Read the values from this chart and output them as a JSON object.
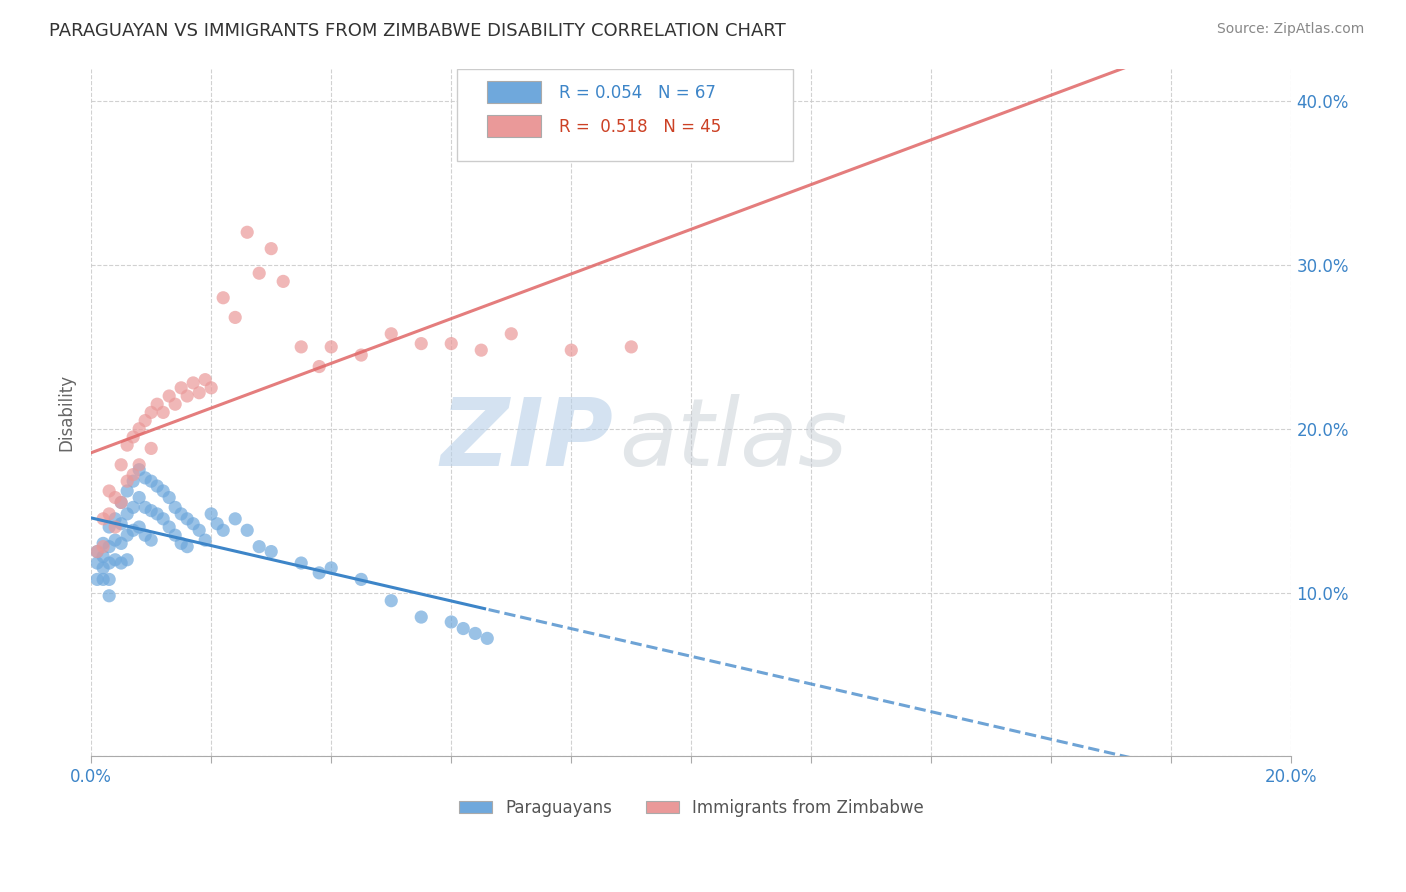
{
  "title": "PARAGUAYAN VS IMMIGRANTS FROM ZIMBABWE DISABILITY CORRELATION CHART",
  "source": "Source: ZipAtlas.com",
  "ylabel": "Disability",
  "xlim": [
    0.0,
    0.2
  ],
  "ylim": [
    0.0,
    0.42
  ],
  "xticks": [
    0.0,
    0.02,
    0.04,
    0.06,
    0.08,
    0.1,
    0.12,
    0.14,
    0.16,
    0.18,
    0.2
  ],
  "yticks": [
    0.0,
    0.1,
    0.2,
    0.3,
    0.4
  ],
  "blue_color": "#6fa8dc",
  "pink_color": "#ea9999",
  "blue_line_color": "#3d85c8",
  "pink_line_color": "#e06666",
  "R_blue": 0.054,
  "N_blue": 67,
  "R_pink": 0.518,
  "N_pink": 45,
  "legend_label_blue": "Paraguayans",
  "legend_label_pink": "Immigrants from Zimbabwe",
  "blue_points_x": [
    0.001,
    0.001,
    0.001,
    0.002,
    0.002,
    0.002,
    0.002,
    0.003,
    0.003,
    0.003,
    0.003,
    0.003,
    0.004,
    0.004,
    0.004,
    0.005,
    0.005,
    0.005,
    0.005,
    0.006,
    0.006,
    0.006,
    0.006,
    0.007,
    0.007,
    0.007,
    0.008,
    0.008,
    0.008,
    0.009,
    0.009,
    0.009,
    0.01,
    0.01,
    0.01,
    0.011,
    0.011,
    0.012,
    0.012,
    0.013,
    0.013,
    0.014,
    0.014,
    0.015,
    0.015,
    0.016,
    0.016,
    0.017,
    0.018,
    0.019,
    0.02,
    0.021,
    0.022,
    0.024,
    0.026,
    0.028,
    0.03,
    0.035,
    0.038,
    0.04,
    0.045,
    0.05,
    0.055,
    0.06,
    0.062,
    0.064,
    0.066
  ],
  "blue_points_y": [
    0.125,
    0.118,
    0.108,
    0.13,
    0.122,
    0.115,
    0.108,
    0.14,
    0.128,
    0.118,
    0.108,
    0.098,
    0.145,
    0.132,
    0.12,
    0.155,
    0.142,
    0.13,
    0.118,
    0.162,
    0.148,
    0.135,
    0.12,
    0.168,
    0.152,
    0.138,
    0.175,
    0.158,
    0.14,
    0.17,
    0.152,
    0.135,
    0.168,
    0.15,
    0.132,
    0.165,
    0.148,
    0.162,
    0.145,
    0.158,
    0.14,
    0.152,
    0.135,
    0.148,
    0.13,
    0.145,
    0.128,
    0.142,
    0.138,
    0.132,
    0.148,
    0.142,
    0.138,
    0.145,
    0.138,
    0.128,
    0.125,
    0.118,
    0.112,
    0.115,
    0.108,
    0.095,
    0.085,
    0.082,
    0.078,
    0.075,
    0.072
  ],
  "pink_points_x": [
    0.001,
    0.002,
    0.002,
    0.003,
    0.003,
    0.004,
    0.004,
    0.005,
    0.005,
    0.006,
    0.006,
    0.007,
    0.007,
    0.008,
    0.008,
    0.009,
    0.01,
    0.01,
    0.011,
    0.012,
    0.013,
    0.014,
    0.015,
    0.016,
    0.017,
    0.018,
    0.019,
    0.02,
    0.022,
    0.024,
    0.026,
    0.028,
    0.03,
    0.032,
    0.035,
    0.038,
    0.04,
    0.045,
    0.05,
    0.055,
    0.06,
    0.065,
    0.07,
    0.08,
    0.09
  ],
  "pink_points_y": [
    0.125,
    0.145,
    0.128,
    0.162,
    0.148,
    0.158,
    0.14,
    0.178,
    0.155,
    0.19,
    0.168,
    0.195,
    0.172,
    0.2,
    0.178,
    0.205,
    0.21,
    0.188,
    0.215,
    0.21,
    0.22,
    0.215,
    0.225,
    0.22,
    0.228,
    0.222,
    0.23,
    0.225,
    0.28,
    0.268,
    0.32,
    0.295,
    0.31,
    0.29,
    0.25,
    0.238,
    0.25,
    0.245,
    0.258,
    0.252,
    0.252,
    0.248,
    0.258,
    0.248,
    0.25
  ]
}
